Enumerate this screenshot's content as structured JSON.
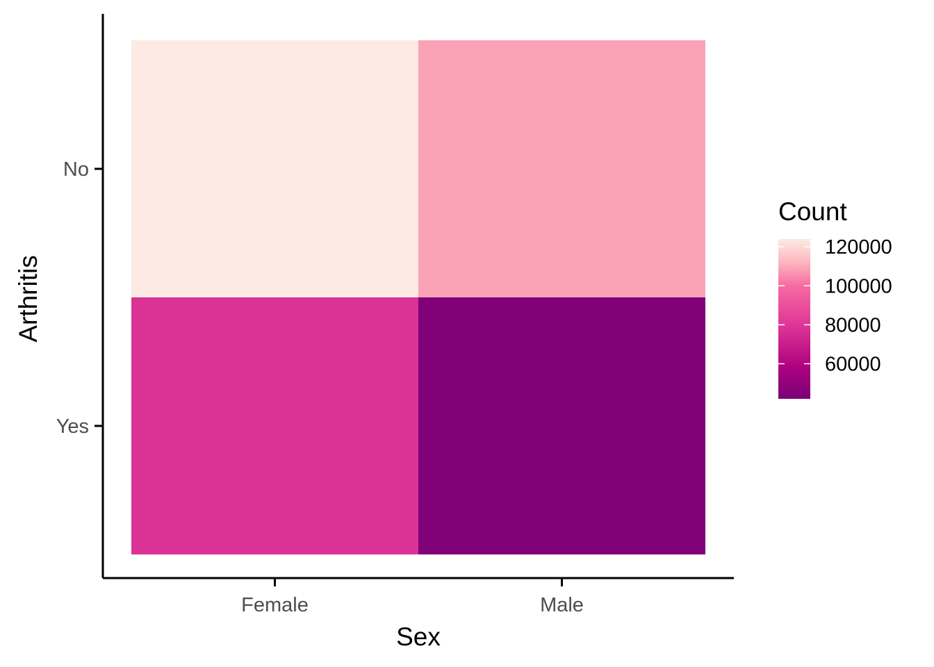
{
  "chart_data": {
    "type": "heatmap",
    "x_categories": [
      "Female",
      "Male"
    ],
    "y_categories": [
      "No",
      "Yes"
    ],
    "cells": [
      {
        "x": "Female",
        "y": "No",
        "value": 125000
      },
      {
        "x": "Male",
        "y": "No",
        "value": 109000
      },
      {
        "x": "Female",
        "y": "Yes",
        "value": 78000
      },
      {
        "x": "Male",
        "y": "Yes",
        "value": 44000
      }
    ],
    "xlabel": "Sex",
    "ylabel": "Arthritis",
    "legend": {
      "title": "Count",
      "ticks": [
        120000,
        100000,
        80000,
        60000
      ],
      "tick_labels": [
        "120000",
        "100000",
        "80000",
        "60000"
      ],
      "range": [
        42000,
        124000
      ],
      "placement": "right"
    },
    "colors": {
      "low": "#7a0177",
      "mid_low": "#ae017e",
      "mid": "#dd3497",
      "mid_high": "#f768a1",
      "high_mid": "#fa9fb5",
      "high": "#fde7de"
    },
    "grid": false
  }
}
